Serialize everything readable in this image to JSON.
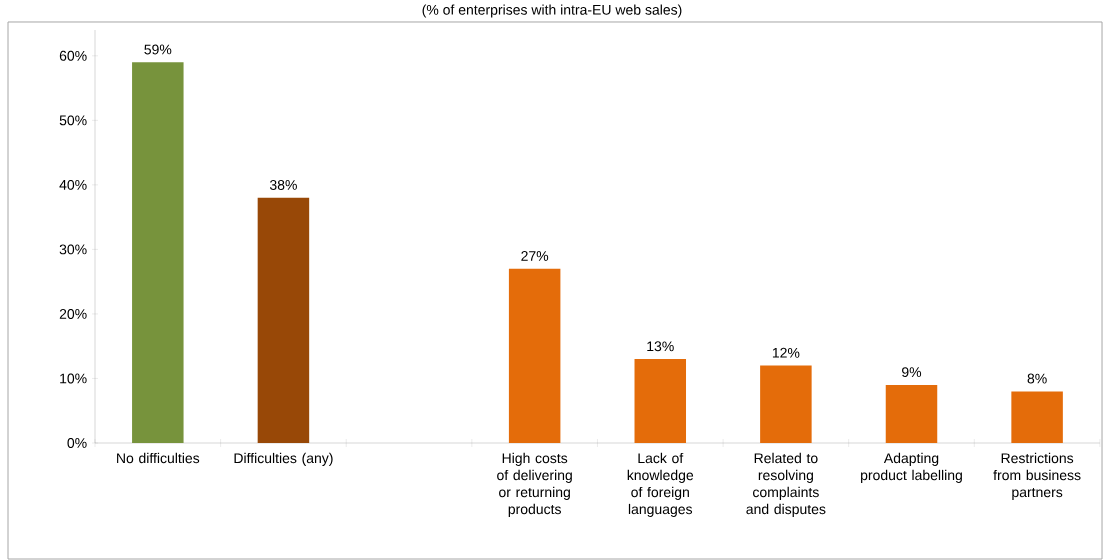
{
  "chart_data": {
    "type": "bar",
    "title": "(% of enterprises with intra-EU web sales)",
    "categories": [
      "No difficulties",
      "Difficulties (any)",
      null,
      "High costs of delivering or returning products",
      "Lack of knowledge of foreign languages",
      "Related to resolving complaints and disputes",
      "Adapting product labelling",
      "Restrictions from business partners"
    ],
    "values": [
      59,
      38,
      null,
      27,
      13,
      12,
      9,
      8
    ],
    "colors": [
      "#77933c",
      "#984807",
      "#e46c0a",
      "#e46c0a",
      "#e46c0a",
      "#e46c0a",
      "#e46c0a",
      "#e46c0a"
    ],
    "value_labels": [
      "59%",
      "38%",
      null,
      "27%",
      "13%",
      "12%",
      "9%",
      "8%"
    ],
    "ylim": [
      0,
      64
    ],
    "yticks": [
      {
        "value": 0,
        "label": "0%"
      },
      {
        "value": 10,
        "label": "10%"
      },
      {
        "value": 20,
        "label": "20%"
      },
      {
        "value": 30,
        "label": "30%"
      },
      {
        "value": 40,
        "label": "40%"
      },
      {
        "value": 50,
        "label": "50%"
      },
      {
        "value": 60,
        "label": "60%"
      }
    ],
    "grid": false
  }
}
